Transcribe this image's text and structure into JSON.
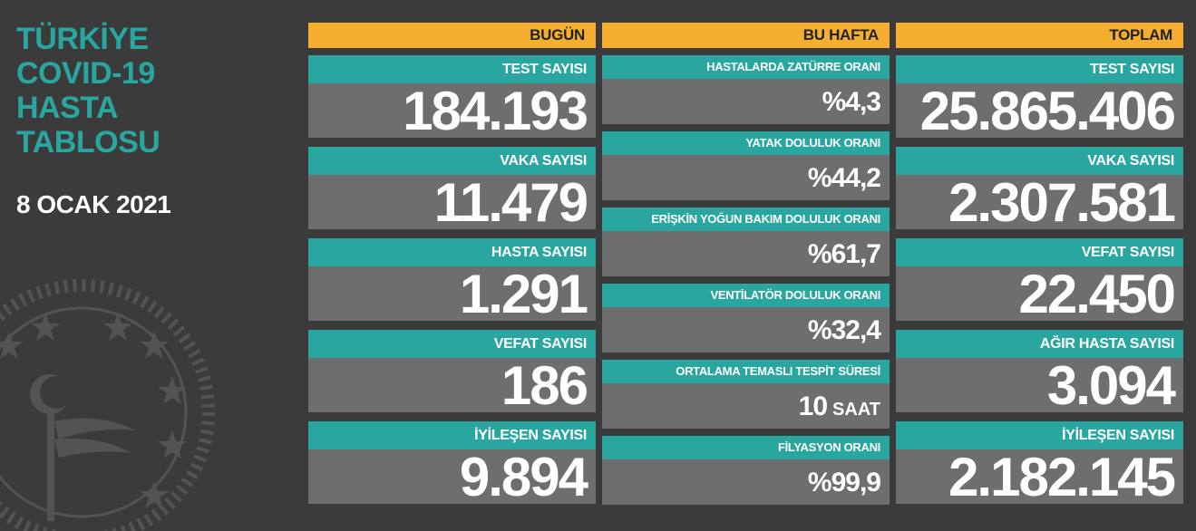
{
  "title_lines": [
    "TÜRKİYE",
    "COVID-19",
    "HASTA",
    "TABLOSU"
  ],
  "date": "8 OCAK 2021",
  "columns": {
    "today": {
      "header": "BUGÜN",
      "cards": [
        {
          "label": "TEST SAYISI",
          "value": "184.193"
        },
        {
          "label": "VAKA SAYISI",
          "value": "11.479"
        },
        {
          "label": "HASTA SAYISI",
          "value": "1.291"
        },
        {
          "label": "VEFAT SAYISI",
          "value": "186"
        },
        {
          "label": "İYİLEŞEN SAYISI",
          "value": "9.894"
        }
      ]
    },
    "week": {
      "header": "BU HAFTA",
      "cards": [
        {
          "label": "HASTALARDA ZATÜRRE ORANI",
          "value": "%4,3"
        },
        {
          "label": "YATAK DOLULUK ORANI",
          "value": "%44,2"
        },
        {
          "label": "ERİŞKİN YOĞUN BAKIM DOLULUK ORANI",
          "value": "%61,7"
        },
        {
          "label": "VENTİLATÖR DOLULUK ORANI",
          "value": "%32,4"
        },
        {
          "label": "ORTALAMA TEMASLI TESPİT SÜRESİ",
          "value": "10",
          "unit": "SAAT"
        },
        {
          "label": "FİLYASYON ORANI",
          "value": "%99,9"
        }
      ]
    },
    "total": {
      "header": "TOPLAM",
      "cards": [
        {
          "label": "TEST SAYISI",
          "value": "25.865.406"
        },
        {
          "label": "VAKA SAYISI",
          "value": "2.307.581"
        },
        {
          "label": "VEFAT SAYISI",
          "value": "22.450"
        },
        {
          "label": "AĞIR HASTA SAYISI",
          "value": "3.094"
        },
        {
          "label": "İYİLEŞEN SAYISI",
          "value": "2.182.145"
        }
      ]
    }
  },
  "colors": {
    "background": "#3b3b3b",
    "header": "#f6ae30",
    "label": "#2aa6a0",
    "value_bg": "#6e6e6e",
    "title": "#2aa6a0"
  }
}
